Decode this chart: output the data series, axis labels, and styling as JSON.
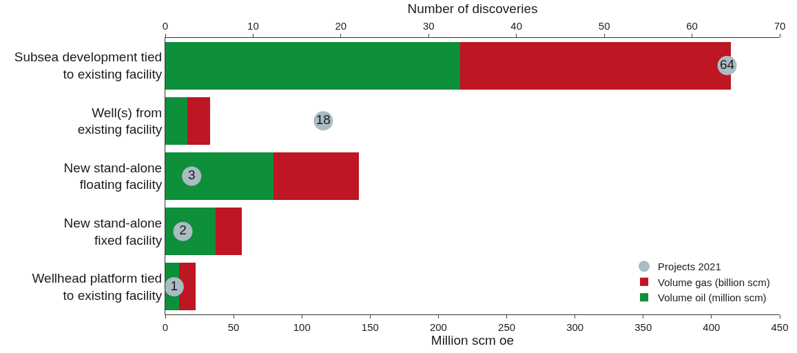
{
  "chart_data": {
    "type": "bar",
    "orientation": "horizontal",
    "stacked": true,
    "categories": [
      "Subsea development tied to existing facility",
      "Well(s) from existing facility",
      "New stand-alone floating facility",
      "New stand-alone fixed facility",
      "Wellhead platform tied to existing facility"
    ],
    "series": [
      {
        "name": "Volume oil (million scm)",
        "color": "#0e8f3a",
        "values": [
          216,
          16,
          79,
          37,
          10
        ]
      },
      {
        "name": "Volume gas (billion scm)",
        "color": "#be1622",
        "values": [
          198,
          17,
          63,
          19,
          12
        ]
      },
      {
        "name": "Projects 2021",
        "type": "scatter",
        "axis": "x2",
        "color": "#a9bcc4",
        "values": [
          64,
          18,
          3,
          2,
          1
        ],
        "data_labels": true
      }
    ],
    "xlabel": "Million scm oe",
    "x2label": "Number of discoveries",
    "xlim": [
      0,
      450
    ],
    "xticks": [
      0,
      50,
      100,
      150,
      200,
      250,
      300,
      350,
      400,
      450
    ],
    "x2lim": [
      0,
      70
    ],
    "x2ticks": [
      0,
      10,
      20,
      30,
      40,
      50,
      60,
      70
    ],
    "legend": "bottom right"
  }
}
